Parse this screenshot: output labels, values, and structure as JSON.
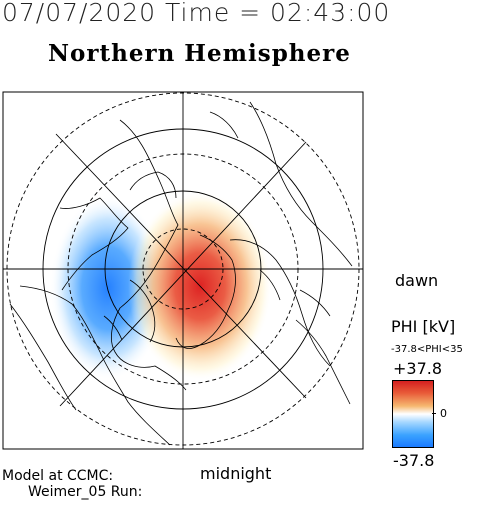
{
  "header": {
    "datetime": "07/07/2020 Time = 02:43:00",
    "hemisphere": "Northern Hemisphere"
  },
  "map": {
    "dawn_label": "dawn",
    "midnight_label": "midnight",
    "potential_cells": [
      {
        "sign": "negative",
        "color": "#1a7aff"
      },
      {
        "sign": "positive",
        "color": "#e02020"
      }
    ]
  },
  "legend": {
    "title": "PHI [kV]",
    "range_text": "-37.8<PHI<35",
    "max_label": "+37.8",
    "zero_label": "0",
    "min_label": "-37.8",
    "max_value": 37.8,
    "min_value": -37.8
  },
  "footer": {
    "line1": "Model at CCMC:",
    "line2": "Weimer_05 Run:"
  }
}
